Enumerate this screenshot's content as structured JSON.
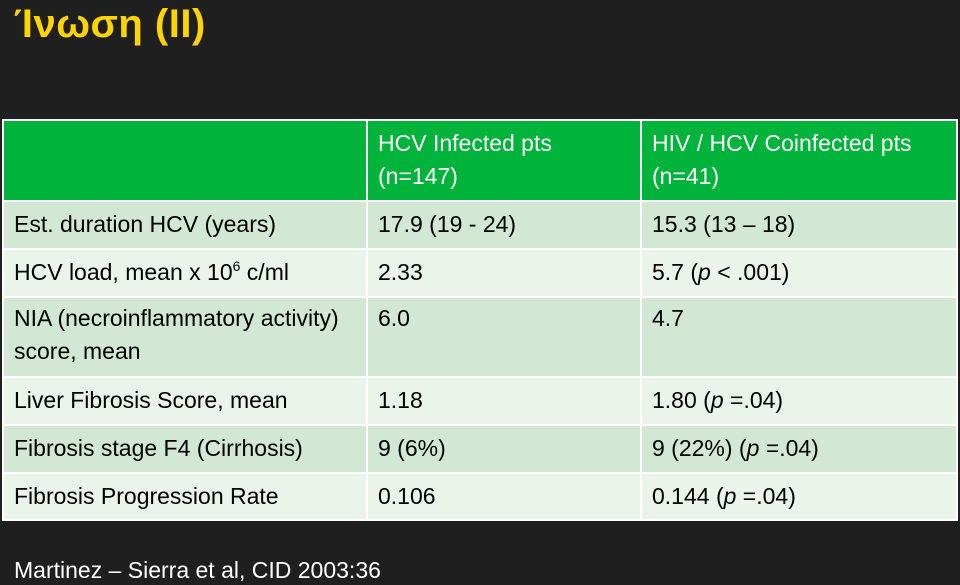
{
  "slide": {
    "title": "Ίνωση (II)"
  },
  "table": {
    "header": {
      "blank": "",
      "col1_line1": "HCV Infected pts",
      "col1_line2": "(n=147)",
      "col2_line1": "HIV / HCV Coinfected pts",
      "col2_line2": "(n=41)"
    },
    "rows": [
      {
        "label": "Est. duration HCV (years)",
        "hcv": "17.9 (19 - 24)",
        "coinfected": "15.3 (13 – 18)"
      },
      {
        "label_pre": "HCV load, mean x 10",
        "label_sup": "6",
        "label_post": " c/ml",
        "hcv": "2.33",
        "coinfected_pre": "5.7 (",
        "coinfected_italic": "p",
        "coinfected_post": " < .001)"
      },
      {
        "label_line1": "NIA (necroinflammatory activity)",
        "label_line2": "score, mean",
        "hcv": "6.0",
        "coinfected": "4.7"
      },
      {
        "label": "Liver Fibrosis Score, mean",
        "hcv": "1.18",
        "coinfected_pre": "1.80 (",
        "coinfected_italic": "p",
        "coinfected_post": " =.04)"
      },
      {
        "label": "Fibrosis stage F4 (Cirrhosis)",
        "hcv": "9 (6%)",
        "coinfected_pre": "9 (22%) (",
        "coinfected_italic": "p",
        "coinfected_post": " =.04)"
      },
      {
        "label": "Fibrosis Progression Rate",
        "hcv": "0.106",
        "coinfected_pre": "0.144 (",
        "coinfected_italic": "p",
        "coinfected_post": " =.04)"
      }
    ]
  },
  "footer": {
    "citation": "Martinez – Sierra et al, CID 2003:36"
  },
  "colors": {
    "background": "#1f1f1f",
    "title": "#ffd400",
    "header_green": "#00b33a",
    "row_band_dark": "#d2e8d4",
    "row_band_light": "#eaf4eb"
  }
}
